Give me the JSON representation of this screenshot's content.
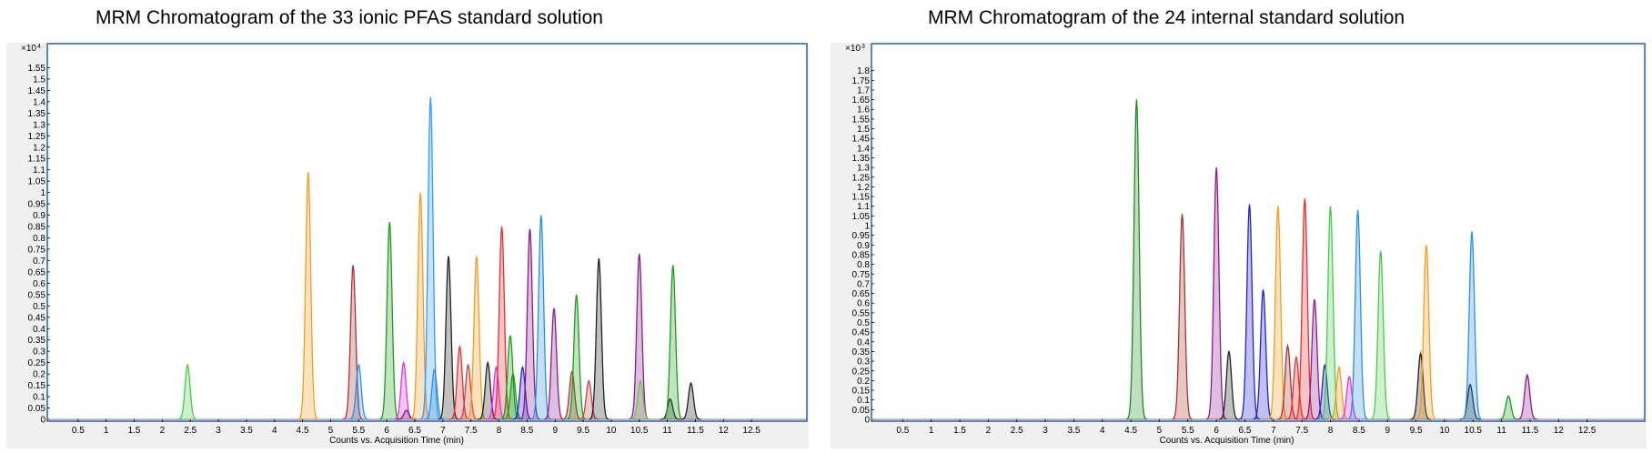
{
  "chart_data": [
    {
      "type": "line",
      "title": "MRM Chromatogram of the 33 ionic PFAS standard solution",
      "xlabel": "Counts vs. Acquisition Time (min)",
      "y_multiplier": "x10 4",
      "xlim": [
        0,
        13
      ],
      "ylim": [
        0,
        1.6
      ],
      "x_ticks": [
        "0.5",
        "1",
        "1.5",
        "2",
        "2.5",
        "3",
        "3.5",
        "4",
        "4.5",
        "5",
        "5.5",
        "6",
        "6.5",
        "7",
        "7.5",
        "8",
        "8.5",
        "9",
        "9.5",
        "10",
        "10.5",
        "11",
        "11.5",
        "12",
        "12.5"
      ],
      "y_ticks": [
        "0",
        "0.05",
        "0.1",
        "0.15",
        "0.2",
        "0.25",
        "0.3",
        "0.35",
        "0.4",
        "0.45",
        "0.5",
        "0.55",
        "0.6",
        "0.65",
        "0.7",
        "0.75",
        "0.8",
        "0.85",
        "0.9",
        "0.95",
        "1",
        "1.05",
        "1.1",
        "1.15",
        "1.2",
        "1.25",
        "1.3",
        "1.35",
        "1.4",
        "1.45",
        "1.5",
        "1.55"
      ],
      "peaks": [
        {
          "rt": 2.45,
          "height": 0.24,
          "color": "#4cc94c"
        },
        {
          "rt": 4.6,
          "height": 1.09,
          "color": "#f39c1e"
        },
        {
          "rt": 5.4,
          "height": 0.68,
          "color": "#a83232"
        },
        {
          "rt": 5.5,
          "height": 0.24,
          "color": "#2b8fe0"
        },
        {
          "rt": 6.05,
          "height": 0.87,
          "color": "#1e9a1e"
        },
        {
          "rt": 6.3,
          "height": 0.25,
          "color": "#e62ee6"
        },
        {
          "rt": 6.35,
          "height": 0.04,
          "color": "#7a1f7a"
        },
        {
          "rt": 6.6,
          "height": 1.0,
          "color": "#f39c1e"
        },
        {
          "rt": 6.78,
          "height": 1.42,
          "color": "#3399ff"
        },
        {
          "rt": 6.85,
          "height": 0.22,
          "color": "#2b8fe0"
        },
        {
          "rt": 7.1,
          "height": 0.72,
          "color": "#222222"
        },
        {
          "rt": 7.3,
          "height": 0.32,
          "color": "#e53030"
        },
        {
          "rt": 7.45,
          "height": 0.24,
          "color": "#c04848"
        },
        {
          "rt": 7.6,
          "height": 0.72,
          "color": "#f39c1e"
        },
        {
          "rt": 7.8,
          "height": 0.25,
          "color": "#222222"
        },
        {
          "rt": 7.95,
          "height": 0.23,
          "color": "#e62ee6"
        },
        {
          "rt": 8.05,
          "height": 0.85,
          "color": "#e53030"
        },
        {
          "rt": 8.2,
          "height": 0.37,
          "color": "#1e9a1e"
        },
        {
          "rt": 8.25,
          "height": 0.2,
          "color": "#1e9a1e"
        },
        {
          "rt": 8.42,
          "height": 0.23,
          "color": "#2222cc"
        },
        {
          "rt": 8.55,
          "height": 0.84,
          "color": "#8b1a8b"
        },
        {
          "rt": 8.75,
          "height": 0.9,
          "color": "#2b8fe0"
        },
        {
          "rt": 8.98,
          "height": 0.49,
          "color": "#8b1a8b"
        },
        {
          "rt": 9.3,
          "height": 0.21,
          "color": "#a83232"
        },
        {
          "rt": 9.38,
          "height": 0.55,
          "color": "#1e9a1e"
        },
        {
          "rt": 9.6,
          "height": 0.17,
          "color": "#c04848"
        },
        {
          "rt": 9.78,
          "height": 0.71,
          "color": "#222222"
        },
        {
          "rt": 10.5,
          "height": 0.73,
          "color": "#8b1a8b"
        },
        {
          "rt": 10.52,
          "height": 0.17,
          "color": "#6fbf4a"
        },
        {
          "rt": 11.05,
          "height": 0.09,
          "color": "#222222"
        },
        {
          "rt": 11.1,
          "height": 0.68,
          "color": "#1e9a1e"
        },
        {
          "rt": 11.42,
          "height": 0.16,
          "color": "#222222"
        }
      ]
    },
    {
      "type": "line",
      "title": "MRM Chromatogram of the 24 internal standard solution",
      "xlabel": "Counts vs. Acquisition Time (min)",
      "y_multiplier": "x10 3",
      "xlim": [
        0,
        13
      ],
      "ylim": [
        0,
        1.85
      ],
      "x_ticks": [
        "0.5",
        "1",
        "1.5",
        "2",
        "2.5",
        "3",
        "3.5",
        "4",
        "4.5",
        "5",
        "5.5",
        "6",
        "6.5",
        "7",
        "7.5",
        "8",
        "8.5",
        "9",
        "9.5",
        "10",
        "10.5",
        "11",
        "11.5",
        "12",
        "12.5"
      ],
      "y_ticks": [
        "0",
        "0.05",
        "0.1",
        "0.15",
        "0.2",
        "0.25",
        "0.3",
        "0.35",
        "0.4",
        "0.45",
        "0.5",
        "0.55",
        "0.6",
        "0.65",
        "0.7",
        "0.75",
        "0.8",
        "0.85",
        "0.9",
        "0.95",
        "1",
        "1.05",
        "1.1",
        "1.15",
        "1.2",
        "1.25",
        "1.3",
        "1.35",
        "1.4",
        "1.45",
        "1.5",
        "1.55",
        "1.6",
        "1.65",
        "1.7",
        "1.75",
        "1.8"
      ],
      "peaks": [
        {
          "rt": 4.6,
          "height": 1.65,
          "color": "#1e8a1e"
        },
        {
          "rt": 5.4,
          "height": 1.06,
          "color": "#a83232"
        },
        {
          "rt": 6.0,
          "height": 1.3,
          "color": "#8b1a8b"
        },
        {
          "rt": 6.22,
          "height": 0.35,
          "color": "#222222"
        },
        {
          "rt": 6.58,
          "height": 1.11,
          "color": "#2222cc"
        },
        {
          "rt": 6.82,
          "height": 0.67,
          "color": "#2222cc"
        },
        {
          "rt": 7.08,
          "height": 1.1,
          "color": "#f39c1e"
        },
        {
          "rt": 7.25,
          "height": 0.38,
          "color": "#a83232"
        },
        {
          "rt": 7.4,
          "height": 0.32,
          "color": "#e53030"
        },
        {
          "rt": 7.55,
          "height": 1.14,
          "color": "#e53030"
        },
        {
          "rt": 7.72,
          "height": 0.62,
          "color": "#8b1a8b"
        },
        {
          "rt": 7.9,
          "height": 0.28,
          "color": "#2222cc"
        },
        {
          "rt": 8.0,
          "height": 1.1,
          "color": "#4cc94c"
        },
        {
          "rt": 8.15,
          "height": 0.27,
          "color": "#f39c1e"
        },
        {
          "rt": 8.33,
          "height": 0.22,
          "color": "#e62ee6"
        },
        {
          "rt": 8.48,
          "height": 1.08,
          "color": "#2b8fe0"
        },
        {
          "rt": 8.88,
          "height": 0.87,
          "color": "#4cc94c"
        },
        {
          "rt": 9.58,
          "height": 0.34,
          "color": "#222222"
        },
        {
          "rt": 9.68,
          "height": 0.9,
          "color": "#f39c1e"
        },
        {
          "rt": 10.45,
          "height": 0.18,
          "color": "#222222"
        },
        {
          "rt": 10.48,
          "height": 0.97,
          "color": "#2b8fe0"
        },
        {
          "rt": 11.12,
          "height": 0.12,
          "color": "#1e9a1e"
        },
        {
          "rt": 11.45,
          "height": 0.23,
          "color": "#8b1a8b"
        }
      ]
    }
  ]
}
